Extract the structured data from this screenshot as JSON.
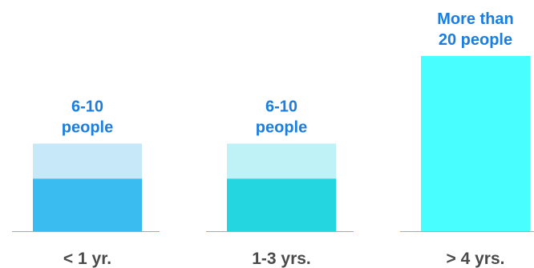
{
  "chart_data": {
    "type": "bar",
    "title": "",
    "xlabel": "",
    "ylabel": "",
    "ylim": [
      0,
      20
    ],
    "categories": [
      "< 1 yr.",
      "1-3 yrs.",
      "> 4 yrs."
    ],
    "bars": [
      {
        "category": "< 1 yr.",
        "label_lines": [
          "6-10",
          "people"
        ],
        "range": [
          6,
          10
        ],
        "color_solid": "#3bbcf1",
        "color_light": "#c7e8f8"
      },
      {
        "category": "1-3 yrs.",
        "label_lines": [
          "6-10",
          "people"
        ],
        "range": [
          6,
          10
        ],
        "color_solid": "#23d6e0",
        "color_light": "#bff2f6"
      },
      {
        "category": "> 4 yrs.",
        "label_lines": [
          "More than",
          "20 people"
        ],
        "range": [
          20,
          20
        ],
        "color_solid": "#48feff",
        "color_light": "#48feff"
      }
    ],
    "colors": {
      "label": "#1a7de0",
      "category": "#4a4a4a",
      "baseline": "#7ab8e0"
    },
    "grid": false,
    "legend": "none"
  }
}
